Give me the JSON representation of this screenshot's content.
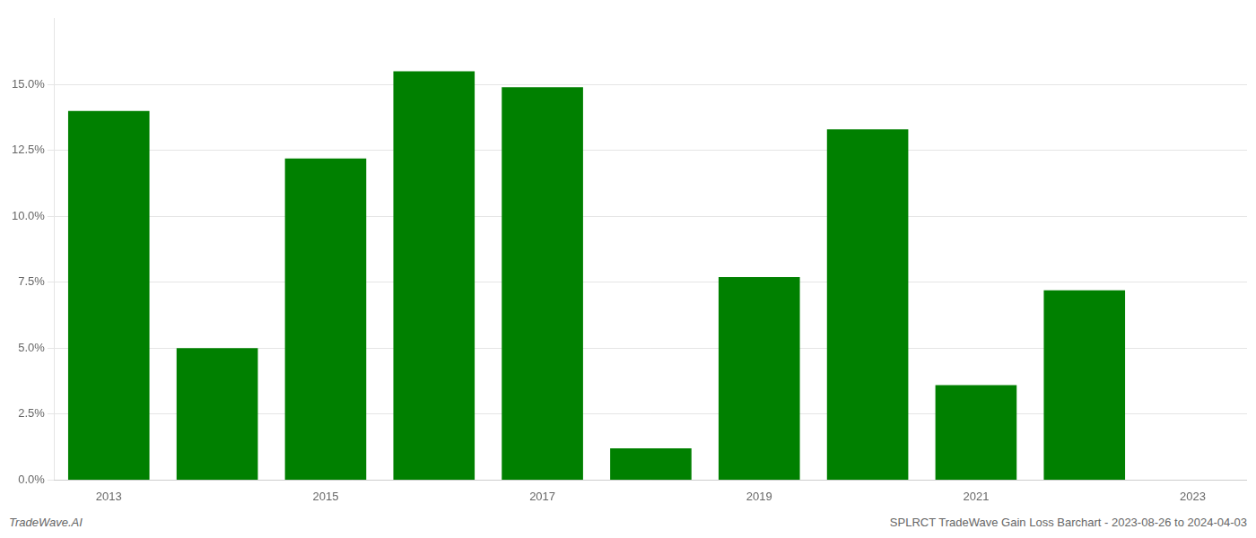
{
  "chart_data": {
    "type": "bar",
    "categories": [
      "2013",
      null,
      "2015",
      null,
      "2017",
      null,
      "2019",
      null,
      "2021",
      null,
      "2023"
    ],
    "values": [
      0.14,
      0.05,
      0.122,
      0.155,
      0.149,
      0.012,
      0.077,
      0.133,
      0.036,
      0.072,
      null
    ],
    "color": "#008000",
    "ylim": [
      0,
      0.175
    ],
    "yticks": [
      {
        "value": 0.0,
        "label": "0.0%"
      },
      {
        "value": 0.025,
        "label": "2.5%"
      },
      {
        "value": 0.05,
        "label": "5.0%"
      },
      {
        "value": 0.075,
        "label": "7.5%"
      },
      {
        "value": 0.1,
        "label": "10.0%"
      },
      {
        "value": 0.125,
        "label": "12.5%"
      },
      {
        "value": 0.15,
        "label": "15.0%"
      }
    ],
    "grid": true,
    "annotations": [
      "TradeWave.AI",
      "SPLRCT TradeWave Gain Loss Barchart - 2023-08-26 to 2024-04-03"
    ]
  }
}
